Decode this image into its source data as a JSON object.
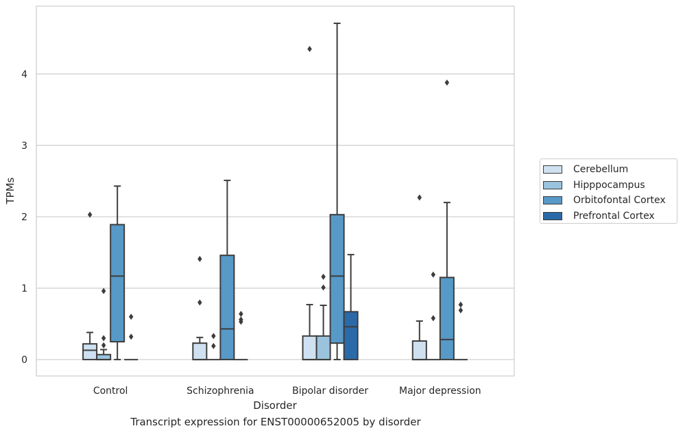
{
  "chart_data": {
    "type": "box",
    "caption": "Transcript expression for ENST00000652005 by disorder",
    "xlabel": "Disorder",
    "ylabel": "TPMs",
    "ylim": [
      -0.23,
      4.95
    ],
    "yticks": [
      "0",
      "1",
      "2",
      "3",
      "4"
    ],
    "grid": true,
    "legend_position": "outside-right",
    "categories": [
      "Control",
      "Schizophrenia",
      "Bipolar disorder",
      "Major depression"
    ],
    "series": [
      {
        "name": "Cerebellum",
        "color": "#cfe1f0",
        "boxes": [
          {
            "q1": 0,
            "median": 0.13,
            "q3": 0.22,
            "whisker_low": 0,
            "whisker_high": 0.38,
            "outliers": [
              2.03
            ]
          },
          {
            "q1": 0,
            "median": 0,
            "q3": 0.23,
            "whisker_low": 0,
            "whisker_high": 0.31,
            "outliers": [
              0.8,
              1.41
            ]
          },
          {
            "q1": 0,
            "median": 0,
            "q3": 0.33,
            "whisker_low": 0,
            "whisker_high": 0.77,
            "outliers": [
              4.35
            ]
          },
          {
            "q1": 0,
            "median": 0,
            "q3": 0.26,
            "whisker_low": 0,
            "whisker_high": 0.54,
            "outliers": [
              2.27
            ]
          }
        ]
      },
      {
        "name": "Hipppocampus",
        "color": "#9ac3dd",
        "boxes": [
          {
            "q1": 0,
            "median": 0,
            "q3": 0.07,
            "whisker_low": 0,
            "whisker_high": 0.14,
            "outliers": [
              0.2,
              0.3,
              0.96
            ]
          },
          {
            "q1": 0,
            "median": 0,
            "q3": 0,
            "whisker_low": 0,
            "whisker_high": 0,
            "outliers": [
              0.19,
              0.33
            ]
          },
          {
            "q1": 0,
            "median": 0,
            "q3": 0.33,
            "whisker_low": 0,
            "whisker_high": 0.76,
            "outliers": [
              1.01,
              1.16
            ]
          },
          {
            "q1": 0,
            "median": 0,
            "q3": 0,
            "whisker_low": 0,
            "whisker_high": 0,
            "outliers": [
              0.58,
              1.19
            ]
          }
        ]
      },
      {
        "name": "Orbitofontal Cortex",
        "color": "#5799c7",
        "boxes": [
          {
            "q1": 0.25,
            "median": 1.17,
            "q3": 1.89,
            "whisker_low": 0,
            "whisker_high": 2.43,
            "outliers": []
          },
          {
            "q1": 0,
            "median": 0.43,
            "q3": 1.46,
            "whisker_low": 0,
            "whisker_high": 2.51,
            "outliers": []
          },
          {
            "q1": 0.23,
            "median": 1.17,
            "q3": 2.03,
            "whisker_low": 0,
            "whisker_high": 4.71,
            "outliers": []
          },
          {
            "q1": 0,
            "median": 0.28,
            "q3": 1.15,
            "whisker_low": 0,
            "whisker_high": 2.2,
            "outliers": [
              3.88
            ]
          }
        ]
      },
      {
        "name": "Prefrontal Cortex",
        "color": "#2b6aa9",
        "boxes": [
          {
            "q1": 0,
            "median": 0,
            "q3": 0,
            "whisker_low": 0,
            "whisker_high": 0,
            "outliers": [
              0.32,
              0.6
            ]
          },
          {
            "q1": 0,
            "median": 0,
            "q3": 0,
            "whisker_low": 0,
            "whisker_high": 0,
            "outliers": [
              0.53,
              0.56,
              0.64
            ]
          },
          {
            "q1": 0,
            "median": 0.46,
            "q3": 0.67,
            "whisker_low": 0,
            "whisker_high": 1.47,
            "outliers": []
          },
          {
            "q1": 0,
            "median": 0,
            "q3": 0,
            "whisker_low": 0,
            "whisker_high": 0,
            "outliers": [
              0.69,
              0.77
            ]
          }
        ]
      }
    ]
  }
}
